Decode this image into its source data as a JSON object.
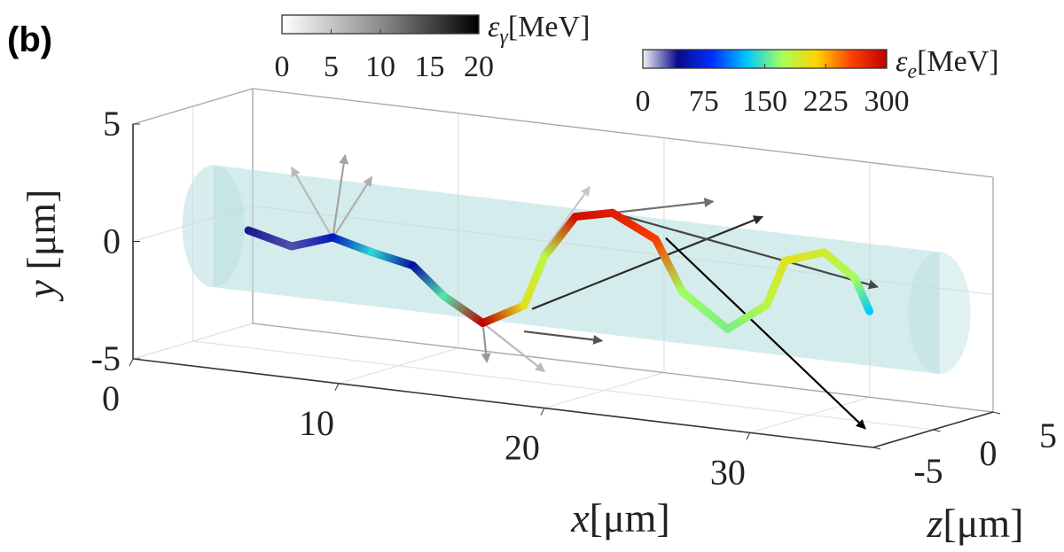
{
  "panel_label": "(b)",
  "chart_data": {
    "type": "line3d",
    "xlabel": {
      "symbol": "x",
      "unit": "[μm]"
    },
    "ylabel": {
      "symbol": "y",
      "unit": " [μm]"
    },
    "zlabel": {
      "symbol": "z",
      "unit": "[μm]"
    },
    "xlim": [
      0,
      36
    ],
    "ylim": [
      -5,
      5
    ],
    "zlim": [
      -5,
      5
    ],
    "xticks": [
      0,
      10,
      20,
      30
    ],
    "yticks": [
      -5,
      0,
      5
    ],
    "zticks": [
      -5,
      0,
      5
    ],
    "grid": true,
    "cylinder": {
      "x": [
        1,
        36.3
      ],
      "radius": 2.6,
      "color": "#b9dfe0"
    },
    "trajectory": {
      "x": [
        2.7,
        4.8,
        6.8,
        8.7,
        10.7,
        12.2,
        14.1,
        16.1,
        17.1,
        18.6,
        20.4,
        22.5,
        23.8,
        26,
        27.9,
        28.8,
        30.7,
        32.2,
        32.9
      ],
      "y": [
        0,
        -0.46,
        0.13,
        -0.3,
        -0.66,
        -1.8,
        -2.75,
        -1.8,
        0.4,
        2.25,
        2.6,
        1.7,
        -0.4,
        -1.76,
        -0.54,
        1.44,
        2,
        1.05,
        -0.28
      ],
      "z": [
        0,
        0,
        0,
        0,
        0,
        0,
        0,
        0,
        0,
        0,
        0,
        0,
        0,
        0,
        0,
        0,
        0,
        0,
        0
      ],
      "energy": [
        40,
        30,
        60,
        140,
        50,
        150,
        300,
        200,
        180,
        290,
        280,
        260,
        170,
        160,
        180,
        200,
        190,
        170,
        130
      ]
    },
    "photons": [
      {
        "x": [
          6.8,
          7.4
        ],
        "y": [
          0.1,
          3.7
        ],
        "z": [
          0,
          0
        ],
        "energy": 8
      },
      {
        "x": [
          6.8,
          4.8
        ],
        "y": [
          0.1,
          2.9
        ],
        "z": [
          0,
          0
        ],
        "energy": 6
      },
      {
        "x": [
          6.8,
          8.7
        ],
        "y": [
          0.1,
          2.9
        ],
        "z": [
          0,
          0
        ],
        "energy": 7
      },
      {
        "x": [
          16.5,
          27.7
        ],
        "y": [
          -1.9,
          3.2
        ],
        "z": [
          0,
          0
        ],
        "energy": 17
      },
      {
        "x": [
          20.4,
          33.3
        ],
        "y": [
          2.6,
          0.8
        ],
        "z": [
          0,
          0
        ],
        "energy": 15
      },
      {
        "x": [
          23,
          32.7
        ],
        "y": [
          1.8,
          -5.3
        ],
        "z": [
          0,
          0
        ],
        "energy": 20
      },
      {
        "x": [
          20.4,
          25.3
        ],
        "y": [
          2.6,
          3.6
        ],
        "z": [
          0,
          0
        ],
        "energy": 12
      },
      {
        "x": [
          14.1,
          14.3
        ],
        "y": [
          -2.75,
          -4.4
        ],
        "z": [
          0,
          0
        ],
        "energy": 9
      },
      {
        "x": [
          14.1,
          17.1
        ],
        "y": [
          -2.75,
          -4.5
        ],
        "z": [
          0,
          0
        ],
        "energy": 6
      },
      {
        "x": [
          16.1,
          19.9
        ],
        "y": [
          -2.9,
          -2.9
        ],
        "z": [
          0,
          0
        ],
        "energy": 14
      },
      {
        "x": [
          16.9,
          19.3
        ],
        "y": [
          0.4,
          3.6
        ],
        "z": [
          0,
          0
        ],
        "energy": 5
      }
    ],
    "colorbars": [
      {
        "symbol": "ε",
        "subscript": "γ",
        "unit": "[MeV]",
        "lim": [
          0,
          20
        ],
        "ticks": [
          0,
          5,
          10,
          15,
          20
        ],
        "colors": [
          "#ffffff",
          "#8c8c8c",
          "#000000"
        ]
      },
      {
        "symbol": "ε",
        "subscript": "e",
        "unit": "[MeV]",
        "lim": [
          0,
          300
        ],
        "ticks": [
          0,
          75,
          150,
          225,
          300
        ],
        "colors": [
          "#f2f2f6",
          "#0a0a8c",
          "#0030ff",
          "#00c8ff",
          "#a8ff5a",
          "#ffd200",
          "#ff4000",
          "#c00000"
        ]
      }
    ]
  }
}
